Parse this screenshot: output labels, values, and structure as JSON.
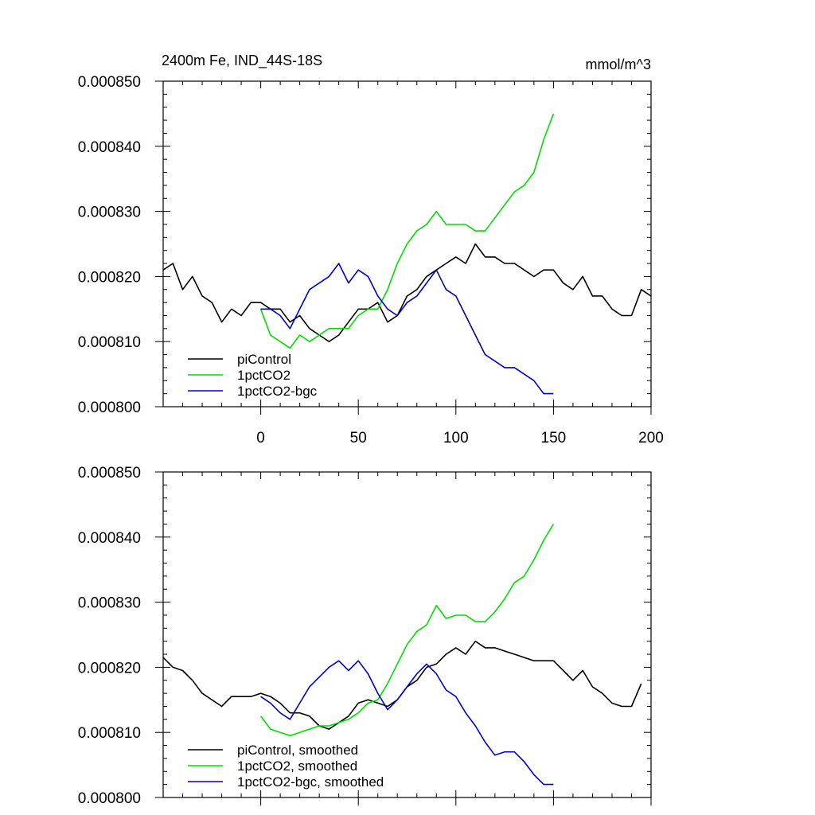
{
  "chart_data": [
    {
      "type": "line",
      "title": "2400m Fe, IND_44S-18S",
      "units": "mmol/m^3",
      "xlim": [
        -50,
        200
      ],
      "ylim": [
        0.0008,
        0.00085
      ],
      "x_ticks": [
        0,
        50,
        100,
        150,
        200
      ],
      "x_tick_labels": [
        "0",
        "50",
        "100",
        "150",
        "200"
      ],
      "y_ticks": [
        0.0008,
        0.00081,
        0.00082,
        0.00083,
        0.00084,
        0.00085
      ],
      "y_tick_labels": [
        "0.000800",
        "0.000810",
        "0.000820",
        "0.000830",
        "0.000840",
        "0.000850"
      ],
      "legend_position": "bottom-left",
      "series": [
        {
          "name": "piControl",
          "color": "#000000",
          "x": [
            -50,
            -45,
            -40,
            -35,
            -30,
            -25,
            -20,
            -15,
            -10,
            -5,
            0,
            5,
            10,
            15,
            20,
            25,
            30,
            35,
            40,
            45,
            50,
            55,
            60,
            65,
            70,
            75,
            80,
            85,
            90,
            95,
            100,
            105,
            110,
            115,
            120,
            125,
            130,
            135,
            140,
            145,
            150,
            155,
            160,
            165,
            170,
            175,
            180,
            185,
            190,
            195,
            200
          ],
          "y": [
            0.000821,
            0.000822,
            0.000818,
            0.00082,
            0.000817,
            0.000816,
            0.000813,
            0.000815,
            0.000814,
            0.000816,
            0.000816,
            0.000815,
            0.000815,
            0.000813,
            0.000814,
            0.000812,
            0.000811,
            0.00081,
            0.000811,
            0.000813,
            0.000815,
            0.000815,
            0.000816,
            0.000813,
            0.000814,
            0.000817,
            0.000818,
            0.00082,
            0.000821,
            0.000822,
            0.000823,
            0.000822,
            0.000825,
            0.000823,
            0.000823,
            0.000822,
            0.000822,
            0.000821,
            0.00082,
            0.000821,
            0.000821,
            0.000819,
            0.000818,
            0.00082,
            0.000817,
            0.000817,
            0.000815,
            0.000814,
            0.000814,
            0.000818,
            0.000817
          ]
        },
        {
          "name": "1pctCO2",
          "color": "#00dd00",
          "x": [
            0,
            5,
            10,
            15,
            20,
            25,
            30,
            35,
            40,
            45,
            50,
            55,
            60,
            65,
            70,
            75,
            80,
            85,
            90,
            95,
            100,
            105,
            110,
            115,
            120,
            125,
            130,
            135,
            140,
            145,
            150
          ],
          "y": [
            0.000815,
            0.000811,
            0.00081,
            0.000809,
            0.000811,
            0.00081,
            0.000811,
            0.000812,
            0.000812,
            0.000812,
            0.000814,
            0.000815,
            0.000815,
            0.000818,
            0.000822,
            0.000825,
            0.000827,
            0.000828,
            0.00083,
            0.000828,
            0.000828,
            0.000828,
            0.000827,
            0.000827,
            0.000829,
            0.000831,
            0.000833,
            0.000834,
            0.000836,
            0.000841,
            0.000845
          ]
        },
        {
          "name": "1pctCO2-bgc",
          "color": "#0000cc",
          "x": [
            0,
            5,
            10,
            15,
            20,
            25,
            30,
            35,
            40,
            45,
            50,
            55,
            60,
            65,
            70,
            75,
            80,
            85,
            90,
            95,
            100,
            105,
            110,
            115,
            120,
            125,
            130,
            135,
            140,
            145,
            150
          ],
          "y": [
            0.000815,
            0.000815,
            0.000814,
            0.000812,
            0.000815,
            0.000818,
            0.000819,
            0.00082,
            0.000822,
            0.000819,
            0.000821,
            0.00082,
            0.000817,
            0.000815,
            0.000814,
            0.000816,
            0.000817,
            0.000819,
            0.000821,
            0.000818,
            0.000817,
            0.000814,
            0.000811,
            0.000808,
            0.000807,
            0.000806,
            0.000806,
            0.000805,
            0.000804,
            0.000802,
            0.000802
          ]
        }
      ]
    },
    {
      "type": "line",
      "xlim": [
        -50,
        200
      ],
      "ylim": [
        0.0008,
        0.00085
      ],
      "x_ticks": [
        0,
        50,
        100,
        150,
        200
      ],
      "y_ticks": [
        0.0008,
        0.00081,
        0.00082,
        0.00083,
        0.00084,
        0.00085
      ],
      "y_tick_labels": [
        "0.000800",
        "0.000810",
        "0.000820",
        "0.000830",
        "0.000840",
        "0.000850"
      ],
      "legend_position": "bottom-left",
      "series": [
        {
          "name": "piControl, smoothed",
          "color": "#000000",
          "x": [
            -50,
            -45,
            -40,
            -35,
            -30,
            -25,
            -20,
            -15,
            -10,
            -5,
            0,
            5,
            10,
            15,
            20,
            25,
            30,
            35,
            40,
            45,
            50,
            55,
            60,
            65,
            70,
            75,
            80,
            85,
            90,
            95,
            100,
            105,
            110,
            115,
            120,
            125,
            130,
            135,
            140,
            145,
            150,
            155,
            160,
            165,
            170,
            175,
            180,
            185,
            190,
            195
          ],
          "y": [
            0.0008215,
            0.00082,
            0.0008195,
            0.000818,
            0.000816,
            0.000815,
            0.000814,
            0.0008155,
            0.0008155,
            0.0008155,
            0.000816,
            0.0008155,
            0.0008145,
            0.000813,
            0.000813,
            0.0008125,
            0.000811,
            0.0008105,
            0.0008115,
            0.0008125,
            0.0008145,
            0.000815,
            0.0008145,
            0.000814,
            0.000815,
            0.000817,
            0.000818,
            0.00082,
            0.0008205,
            0.000822,
            0.000823,
            0.000822,
            0.000824,
            0.000823,
            0.000823,
            0.0008225,
            0.000822,
            0.0008215,
            0.000821,
            0.000821,
            0.000821,
            0.0008195,
            0.000818,
            0.0008195,
            0.000817,
            0.000816,
            0.0008145,
            0.000814,
            0.000814,
            0.0008175
          ]
        },
        {
          "name": "1pctCO2, smoothed",
          "color": "#00dd00",
          "x": [
            0,
            5,
            10,
            15,
            20,
            25,
            30,
            35,
            40,
            45,
            50,
            55,
            60,
            65,
            70,
            75,
            80,
            85,
            90,
            95,
            100,
            105,
            110,
            115,
            120,
            125,
            130,
            135,
            140,
            145,
            150
          ],
          "y": [
            0.0008125,
            0.0008105,
            0.00081,
            0.0008095,
            0.00081,
            0.0008105,
            0.000811,
            0.000811,
            0.0008115,
            0.000812,
            0.000813,
            0.0008145,
            0.000815,
            0.0008175,
            0.0008205,
            0.0008235,
            0.0008255,
            0.0008265,
            0.0008295,
            0.0008275,
            0.000828,
            0.000828,
            0.000827,
            0.000827,
            0.0008285,
            0.0008305,
            0.000833,
            0.000834,
            0.0008365,
            0.0008395,
            0.000842
          ]
        },
        {
          "name": "1pctCO2-bgc, smoothed",
          "color": "#0000cc",
          "x": [
            0,
            5,
            10,
            15,
            20,
            25,
            30,
            35,
            40,
            45,
            50,
            55,
            60,
            65,
            70,
            75,
            80,
            85,
            90,
            95,
            100,
            105,
            110,
            115,
            120,
            125,
            130,
            135,
            140,
            145,
            150
          ],
          "y": [
            0.0008155,
            0.0008145,
            0.000813,
            0.000812,
            0.0008145,
            0.000817,
            0.0008185,
            0.00082,
            0.000821,
            0.0008195,
            0.000821,
            0.000819,
            0.000816,
            0.0008135,
            0.000815,
            0.000817,
            0.000819,
            0.0008205,
            0.000819,
            0.0008165,
            0.0008155,
            0.000813,
            0.000811,
            0.0008085,
            0.0008065,
            0.000807,
            0.000807,
            0.0008055,
            0.0008035,
            0.000802,
            0.000802
          ]
        }
      ]
    }
  ]
}
